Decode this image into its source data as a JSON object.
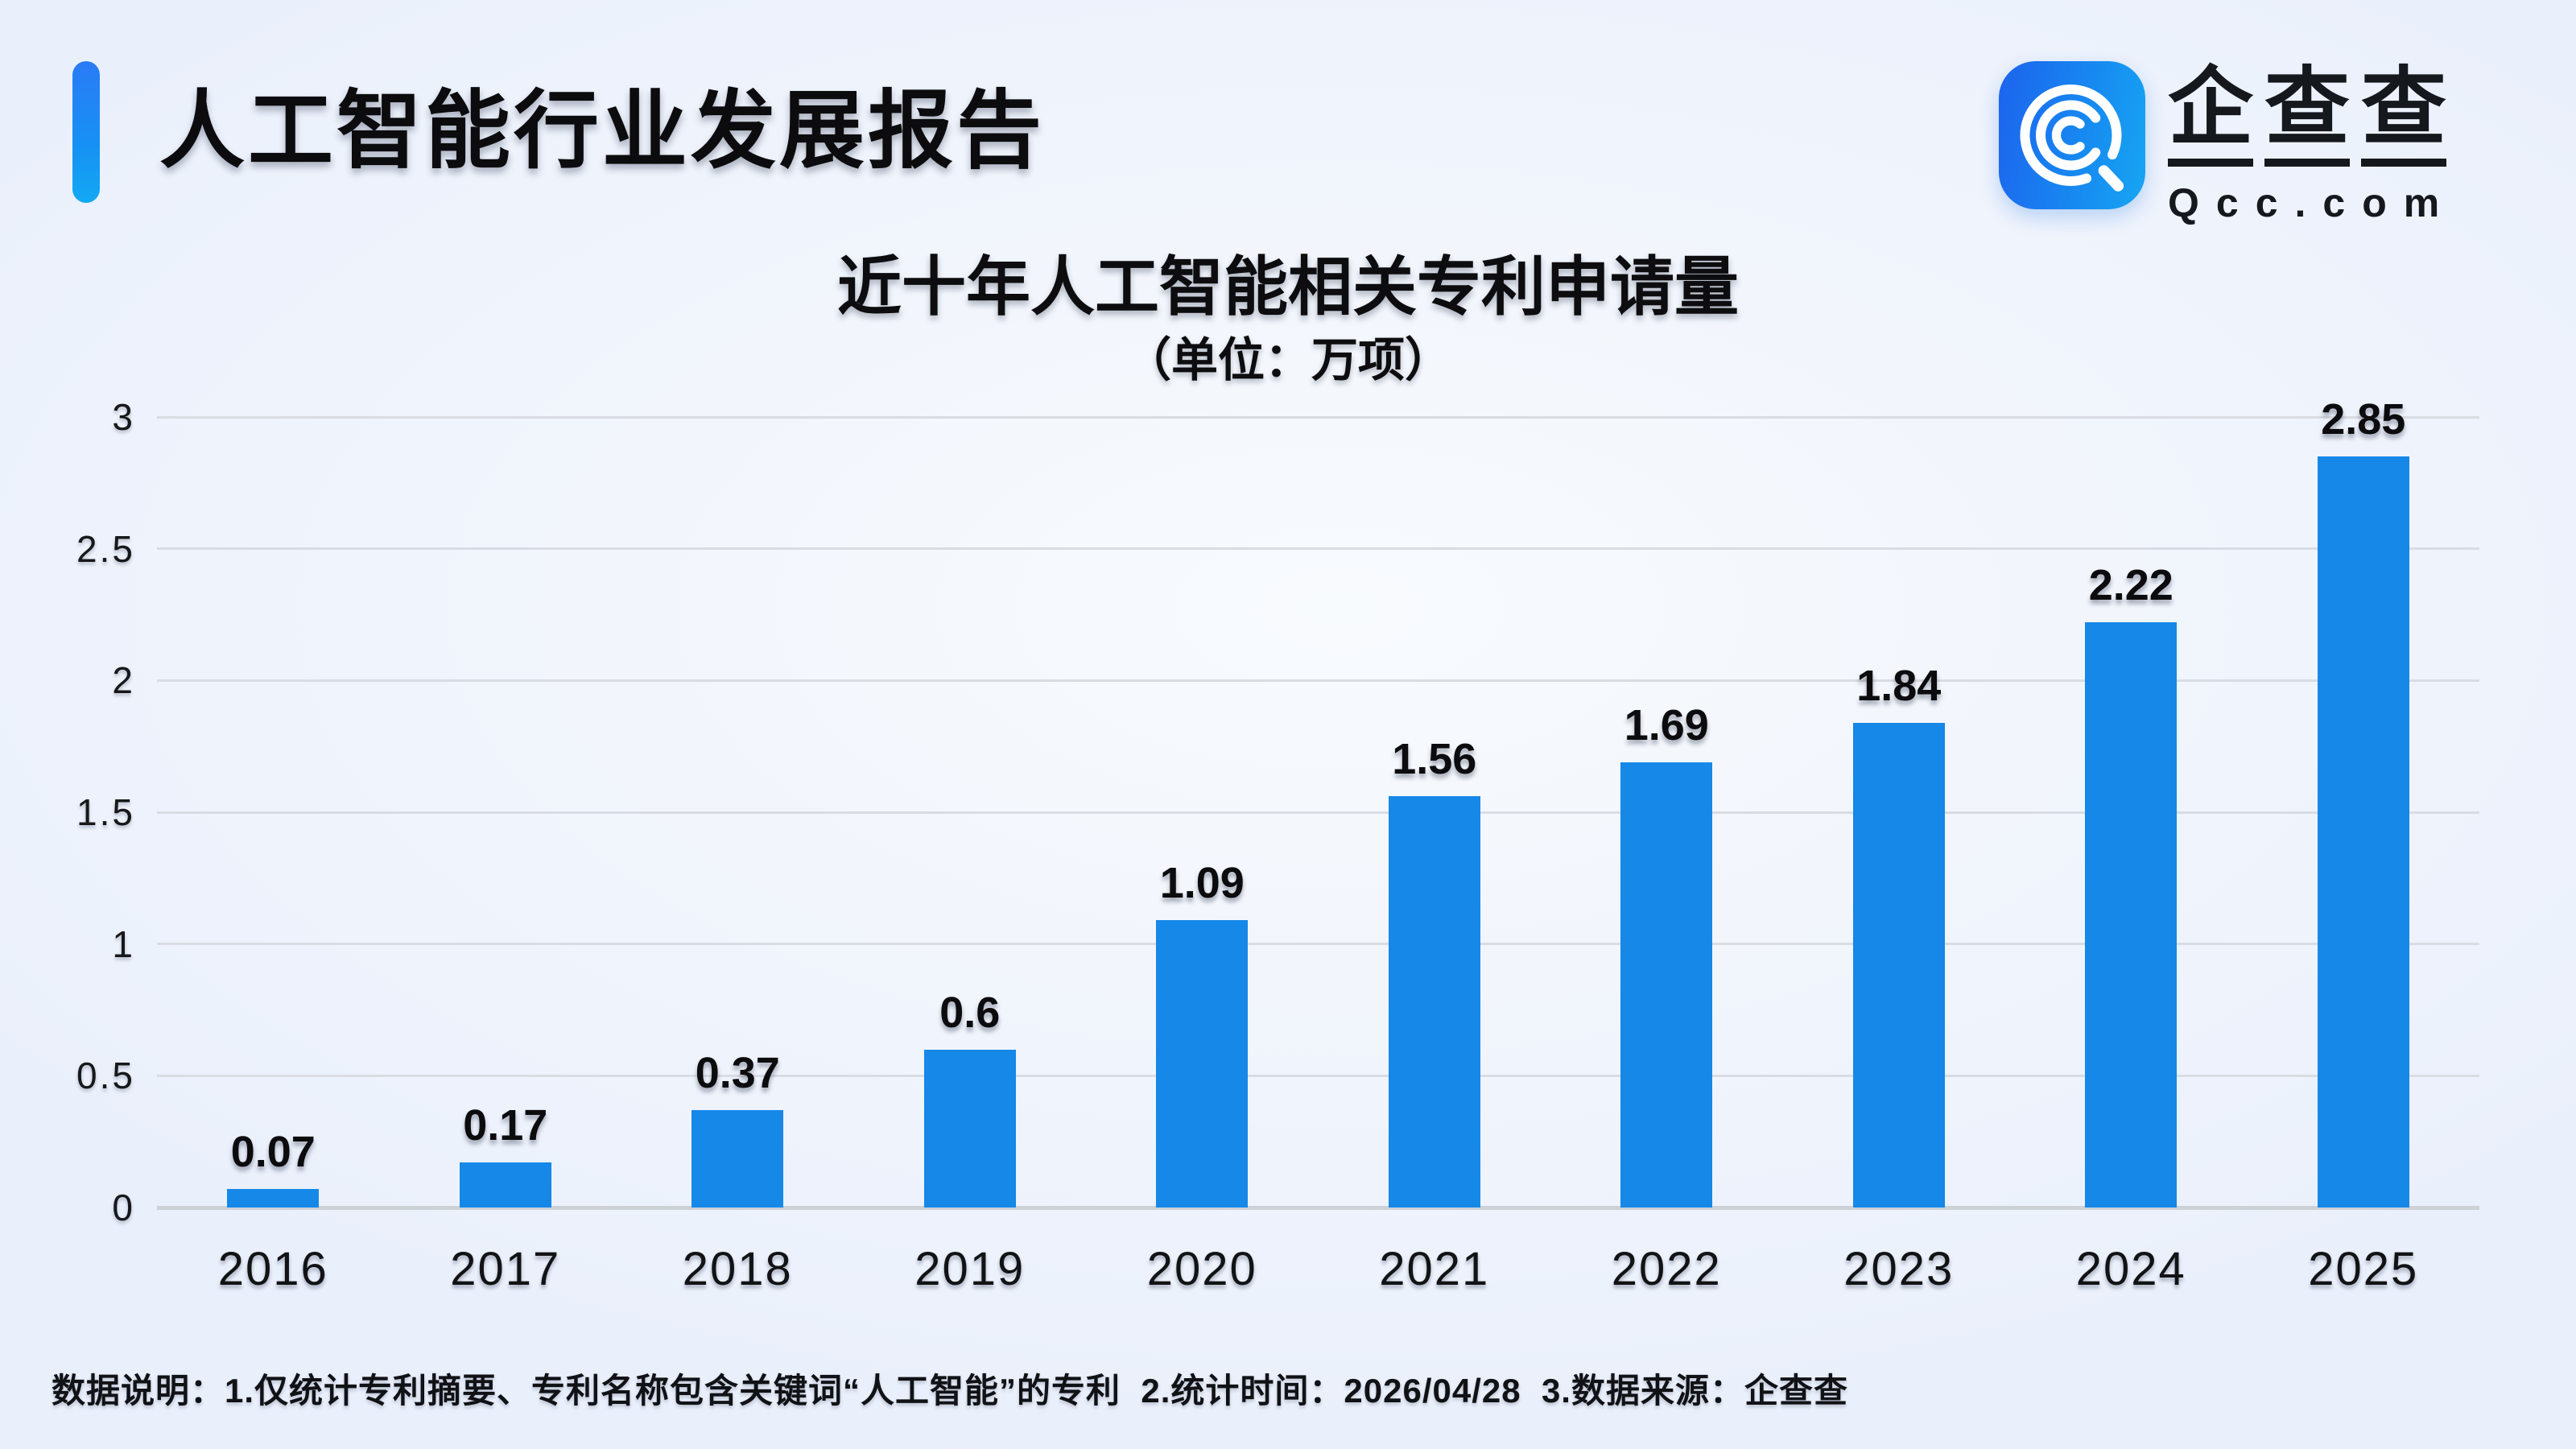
{
  "header": {
    "title": "人工智能行业发展报告",
    "accent_color": "#1f85f6"
  },
  "logo": {
    "company": "企查查",
    "domain": "Qcc.com",
    "icon": "qcc-magnifier-icon",
    "brand_blue": "#1588e8"
  },
  "chart_data": {
    "type": "bar",
    "title": "近十年人工智能相关专利申请量",
    "subtitle": "（单位：万项）",
    "unit": "万项",
    "categories": [
      "2016",
      "2017",
      "2018",
      "2019",
      "2020",
      "2021",
      "2022",
      "2023",
      "2024",
      "2025"
    ],
    "values": [
      0.07,
      0.17,
      0.37,
      0.6,
      1.09,
      1.56,
      1.69,
      1.84,
      2.22,
      2.85
    ],
    "ylim": [
      0,
      3
    ],
    "yticks": [
      0,
      0.5,
      1,
      1.5,
      2,
      2.5,
      3
    ],
    "grid": true,
    "legend_position": "none",
    "bar_color": "#1588e8",
    "gridline_color": "#d9dce2"
  },
  "footer": {
    "note": "数据说明：1.仅统计专利摘要、专利名称包含关键词“人工智能”的专利  2.统计时间：2026/04/28  3.数据来源：企查查"
  }
}
